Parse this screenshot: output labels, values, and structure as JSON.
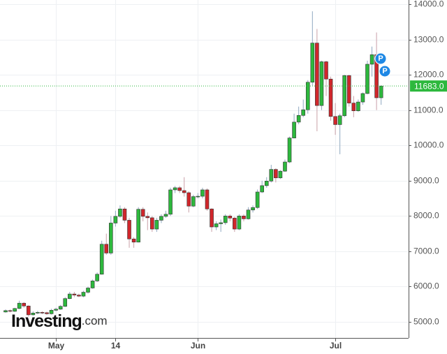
{
  "chart_data": {
    "type": "candlestick",
    "categories": [
      null,
      null,
      null,
      null,
      null,
      null,
      null,
      null,
      null,
      null,
      null,
      "May",
      null,
      null,
      null,
      null,
      null,
      null,
      null,
      null,
      null,
      null,
      null,
      null,
      "14",
      null,
      null,
      null,
      null,
      null,
      null,
      null,
      null,
      null,
      null,
      null,
      null,
      null,
      null,
      null,
      null,
      null,
      "Jun",
      null,
      null,
      null,
      null,
      null,
      null,
      null,
      null,
      null,
      null,
      null,
      null,
      null,
      null,
      null,
      null,
      null,
      null,
      null,
      null,
      null,
      null,
      null,
      null,
      null,
      null,
      null,
      null,
      null,
      "Jul",
      null,
      null,
      null,
      null,
      null,
      null,
      null,
      null,
      null,
      null
    ],
    "open": [
      5280,
      5320,
      5300,
      5380,
      5530,
      5450,
      5200,
      5250,
      5270,
      5260,
      5230,
      5330,
      5360,
      5440,
      5660,
      5790,
      5760,
      5730,
      5840,
      5960,
      6160,
      6350,
      7200,
      6950,
      7800,
      7990,
      8200,
      7880,
      7350,
      7260,
      8190,
      7990,
      7950,
      7630,
      7880,
      7990,
      8050,
      8740,
      8800,
      8720,
      8660,
      8280,
      8550,
      8560,
      8740,
      8200,
      7690,
      7780,
      7810,
      8000,
      7940,
      7630,
      8000,
      7920,
      8170,
      8240,
      8680,
      8860,
      8990,
      9320,
      9080,
      9270,
      9530,
      10210,
      10660,
      10850,
      11010,
      11790,
      12900,
      11130,
      12370,
      11880,
      10820,
      10590,
      10840,
      11980,
      11200,
      10980,
      11230,
      11470,
      12300,
      12570,
      11350
    ],
    "high": [
      5350,
      5350,
      5400,
      5600,
      5560,
      5470,
      5300,
      5310,
      5300,
      5290,
      5370,
      5400,
      5480,
      5700,
      5850,
      5850,
      5800,
      5880,
      6000,
      6200,
      6400,
      7300,
      7500,
      8000,
      8150,
      8300,
      8250,
      7950,
      7400,
      8250,
      8250,
      8100,
      8000,
      7950,
      8050,
      8150,
      8800,
      8850,
      8850,
      9100,
      8700,
      8600,
      8650,
      8800,
      8780,
      8220,
      7850,
      7900,
      8050,
      8050,
      7980,
      8050,
      8050,
      8250,
      8300,
      8750,
      9000,
      9100,
      9450,
      9350,
      9300,
      9600,
      10250,
      10900,
      11100,
      11300,
      11850,
      13800,
      13300,
      12400,
      12400,
      11950,
      11200,
      10900,
      12000,
      12000,
      11400,
      11300,
      11500,
      12400,
      12800,
      13200,
      11700
    ],
    "low": [
      5260,
      5270,
      5280,
      5360,
      5400,
      5150,
      5180,
      5220,
      5220,
      5200,
      5210,
      5300,
      5340,
      5420,
      5640,
      5700,
      5700,
      5700,
      5800,
      5940,
      6130,
      6340,
      6900,
      6900,
      7700,
      7950,
      7800,
      7100,
      7100,
      7250,
      7850,
      7600,
      7550,
      7550,
      7800,
      7950,
      8000,
      8650,
      8650,
      8550,
      8100,
      8250,
      8500,
      8500,
      8150,
      7550,
      7600,
      7550,
      7750,
      7850,
      7550,
      7600,
      7850,
      7900,
      8100,
      8200,
      8650,
      8800,
      8950,
      8950,
      9050,
      9250,
      9500,
      10200,
      10600,
      10800,
      10900,
      11700,
      10400,
      11000,
      11400,
      10700,
      10300,
      9750,
      10800,
      11100,
      10800,
      10950,
      11150,
      11450,
      11950,
      11000,
      11150
    ],
    "close": [
      5320,
      5300,
      5380,
      5530,
      5450,
      5200,
      5250,
      5270,
      5260,
      5230,
      5330,
      5360,
      5440,
      5660,
      5790,
      5760,
      5730,
      5840,
      5960,
      6160,
      6350,
      7200,
      6950,
      7800,
      7990,
      8200,
      7880,
      7350,
      7260,
      8190,
      7990,
      7950,
      7630,
      7880,
      7990,
      8050,
      8740,
      8800,
      8720,
      8660,
      8280,
      8550,
      8560,
      8740,
      8200,
      7690,
      7780,
      7810,
      8000,
      7940,
      7630,
      8000,
      7920,
      8170,
      8240,
      8680,
      8860,
      8990,
      9320,
      9080,
      9270,
      9530,
      10210,
      10660,
      10850,
      11010,
      11790,
      12900,
      11130,
      12370,
      11880,
      10820,
      10590,
      10840,
      11980,
      11200,
      10980,
      11230,
      11470,
      12300,
      12570,
      11350,
      11683
    ],
    "up_color": "#2db83d",
    "down_color": "#d0262b",
    "ylim": [
      4545,
      14120
    ],
    "yticks": [
      {
        "value": 5000,
        "label": "5000.0"
      },
      {
        "value": 6000,
        "label": "6000.0"
      },
      {
        "value": 7000,
        "label": "7000.0"
      },
      {
        "value": 8000,
        "label": "8000.0"
      },
      {
        "value": 9000,
        "label": "9000.0"
      },
      {
        "value": 10000,
        "label": "10000.0"
      },
      {
        "value": 11000,
        "label": "11000.0"
      },
      {
        "value": 12000,
        "label": "12000.0"
      },
      {
        "value": 13000,
        "label": "13000.0"
      },
      {
        "value": 14000,
        "label": "14000.0"
      }
    ],
    "grid": true,
    "last_price": {
      "value": 11683,
      "label": "11683.0"
    },
    "annotations": [
      "P",
      "P"
    ],
    "watermark": {
      "brand": "Investing",
      "suffix": ".com"
    }
  }
}
